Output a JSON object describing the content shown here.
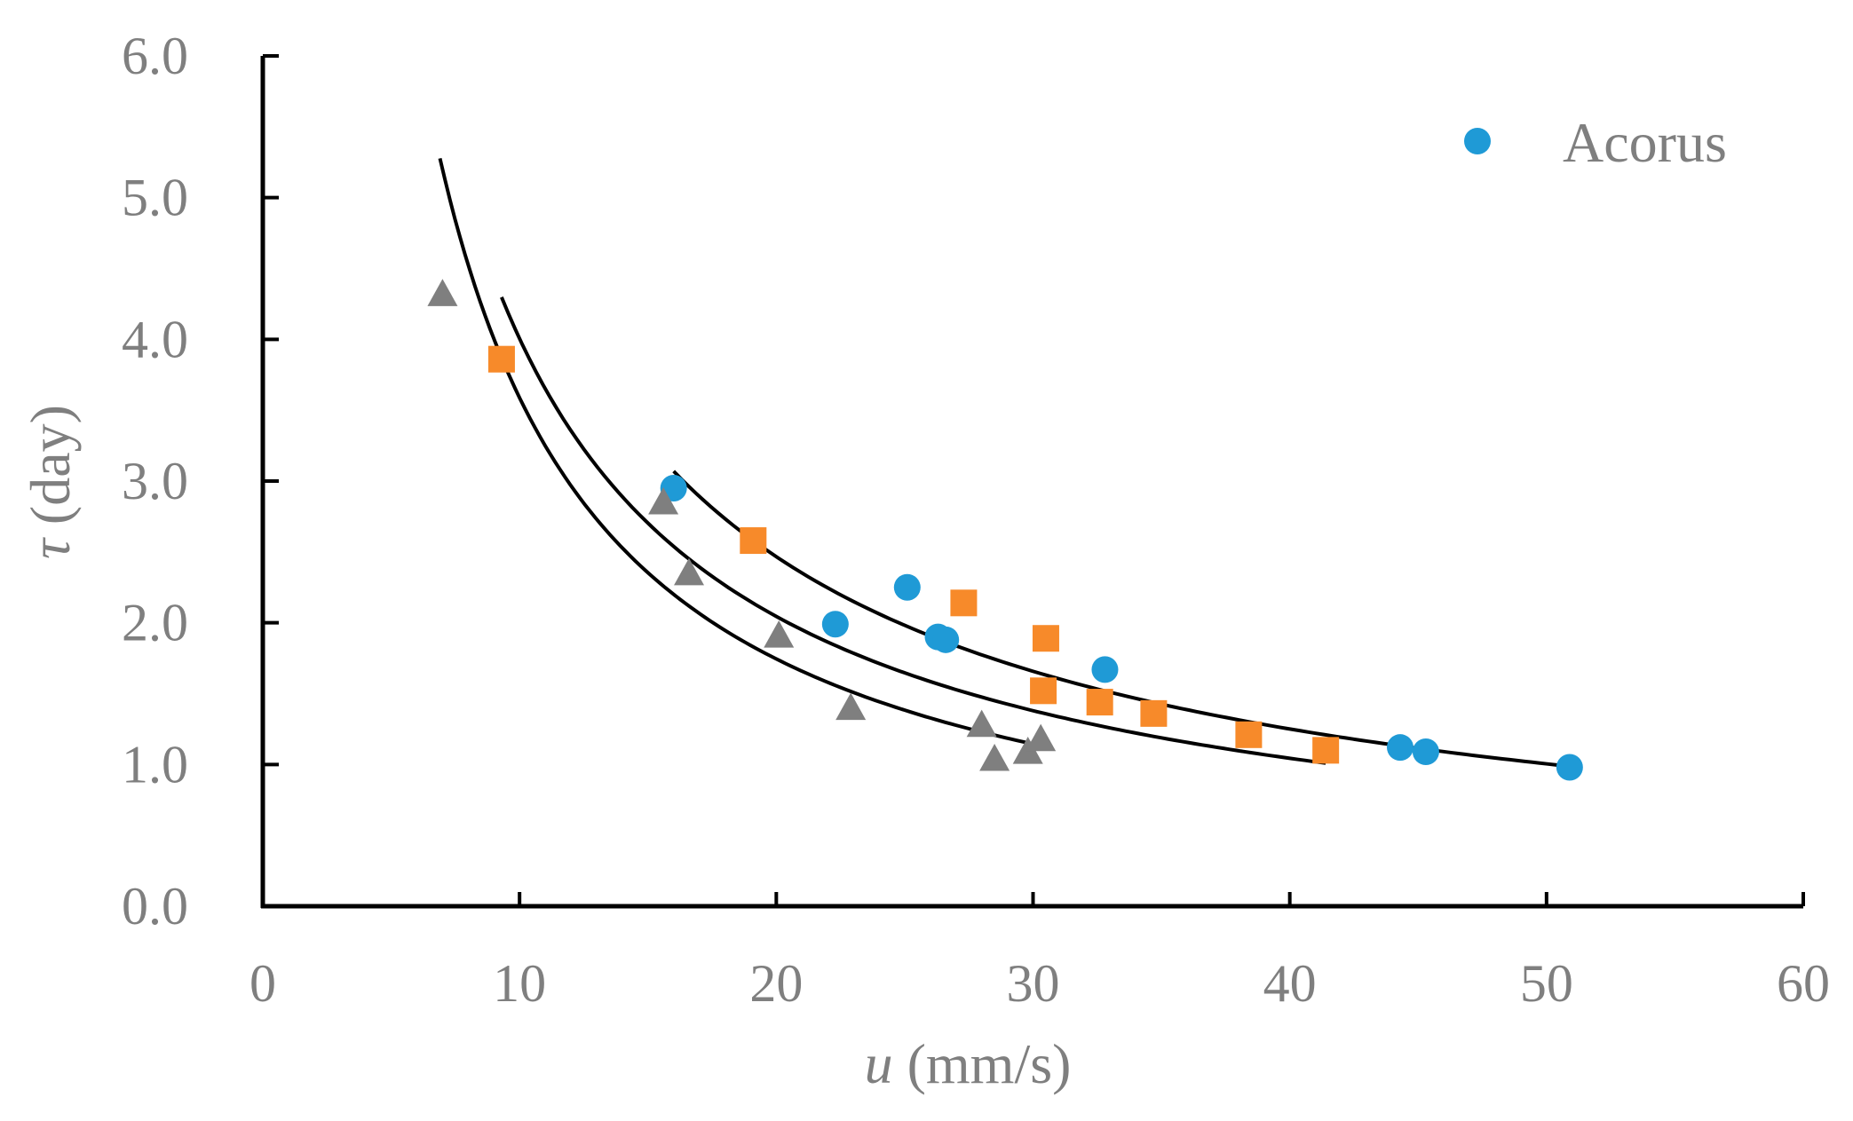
{
  "chart_data": {
    "type": "scatter",
    "title": "",
    "xlabel_var": "u",
    "xlabel_unit": " (mm/s)",
    "ylabel_var": "τ",
    "ylabel_unit": " (day)",
    "xlim": [
      0,
      60
    ],
    "ylim": [
      0,
      6
    ],
    "xticks": [
      0,
      10,
      20,
      30,
      40,
      50,
      60
    ],
    "xtick_labels": [
      "0",
      "10",
      "20",
      "30",
      "40",
      "50",
      "60"
    ],
    "yticks": [
      0,
      1,
      2,
      3,
      4,
      5,
      6
    ],
    "ytick_labels": [
      "0.0",
      "1.0",
      "2.0",
      "3.0",
      "4.0",
      "5.0",
      "6.0"
    ],
    "grid": false,
    "legend_position": "top-right",
    "series": [
      {
        "name": "Acorus",
        "marker": "circle",
        "color": "#1f9ad6",
        "in_legend": true,
        "points": [
          [
            16.0,
            2.95
          ],
          [
            22.3,
            1.99
          ],
          [
            25.1,
            2.25
          ],
          [
            26.3,
            1.9
          ],
          [
            26.6,
            1.88
          ],
          [
            32.8,
            1.67
          ],
          [
            44.3,
            1.12
          ],
          [
            45.3,
            1.09
          ],
          [
            50.9,
            0.98
          ]
        ]
      },
      {
        "name": "",
        "marker": "square",
        "color": "#f78a2a",
        "in_legend": false,
        "points": [
          [
            9.3,
            3.86
          ],
          [
            19.1,
            2.58
          ],
          [
            27.3,
            2.14
          ],
          [
            30.5,
            1.89
          ],
          [
            30.4,
            1.52
          ],
          [
            32.6,
            1.44
          ],
          [
            34.7,
            1.36
          ],
          [
            38.4,
            1.21
          ],
          [
            41.4,
            1.1
          ]
        ]
      },
      {
        "name": "",
        "marker": "triangle",
        "color": "#7f7f7f",
        "in_legend": false,
        "points": [
          [
            7.0,
            4.32
          ],
          [
            15.6,
            2.85
          ],
          [
            16.6,
            2.35
          ],
          [
            20.1,
            1.91
          ],
          [
            22.9,
            1.4
          ],
          [
            28.0,
            1.28
          ],
          [
            28.5,
            1.04
          ],
          [
            29.8,
            1.09
          ],
          [
            30.3,
            1.18
          ]
        ]
      }
    ],
    "trendlines": [
      {
        "name": "fit-acorus",
        "color": "#000000",
        "type": "power",
        "x_range": [
          16.0,
          50.9
        ],
        "a": 46.46,
        "b": -0.98
      },
      {
        "name": "fit-square",
        "color": "#000000",
        "type": "power",
        "x_range": [
          9.3,
          41.4
        ],
        "a": 37.38,
        "b": -0.97
      },
      {
        "name": "fit-triangle",
        "color": "#000000",
        "type": "power",
        "x_range": [
          6.9,
          30.3
        ],
        "a": 39.34,
        "b": -1.04
      }
    ]
  }
}
